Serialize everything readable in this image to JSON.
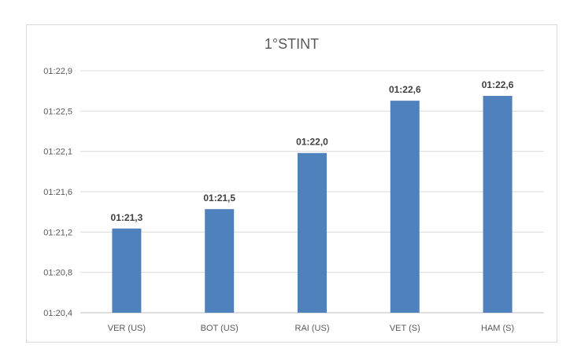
{
  "chart_data": {
    "type": "bar",
    "title": "1°STINT",
    "xlabel": "",
    "ylabel": "",
    "categories": [
      "VER (US)",
      "BOT (US)",
      "RAI (US)",
      "VET (S)",
      "HAM (S)"
    ],
    "values": [
      81.27,
      81.47,
      82.05,
      82.59,
      82.64
    ],
    "data_labels": [
      "01:21,3",
      "01:21,5",
      "01:22,0",
      "01:22,6",
      "01:22,6"
    ],
    "ylim": [
      80.4,
      82.9
    ],
    "yticks": [
      80.4,
      80.8,
      81.2,
      81.6,
      82.1,
      82.5,
      82.9
    ],
    "ytick_labels": [
      "01:20,4",
      "01:20,8",
      "01:21,2",
      "01:21,6",
      "01:22,1",
      "01:22,5",
      "01:22,9"
    ],
    "grid": true,
    "legend": "none",
    "colors": {
      "bar": "#4f81bd",
      "grid": "#d9d9d9",
      "axis": "#bfbfbf"
    }
  }
}
